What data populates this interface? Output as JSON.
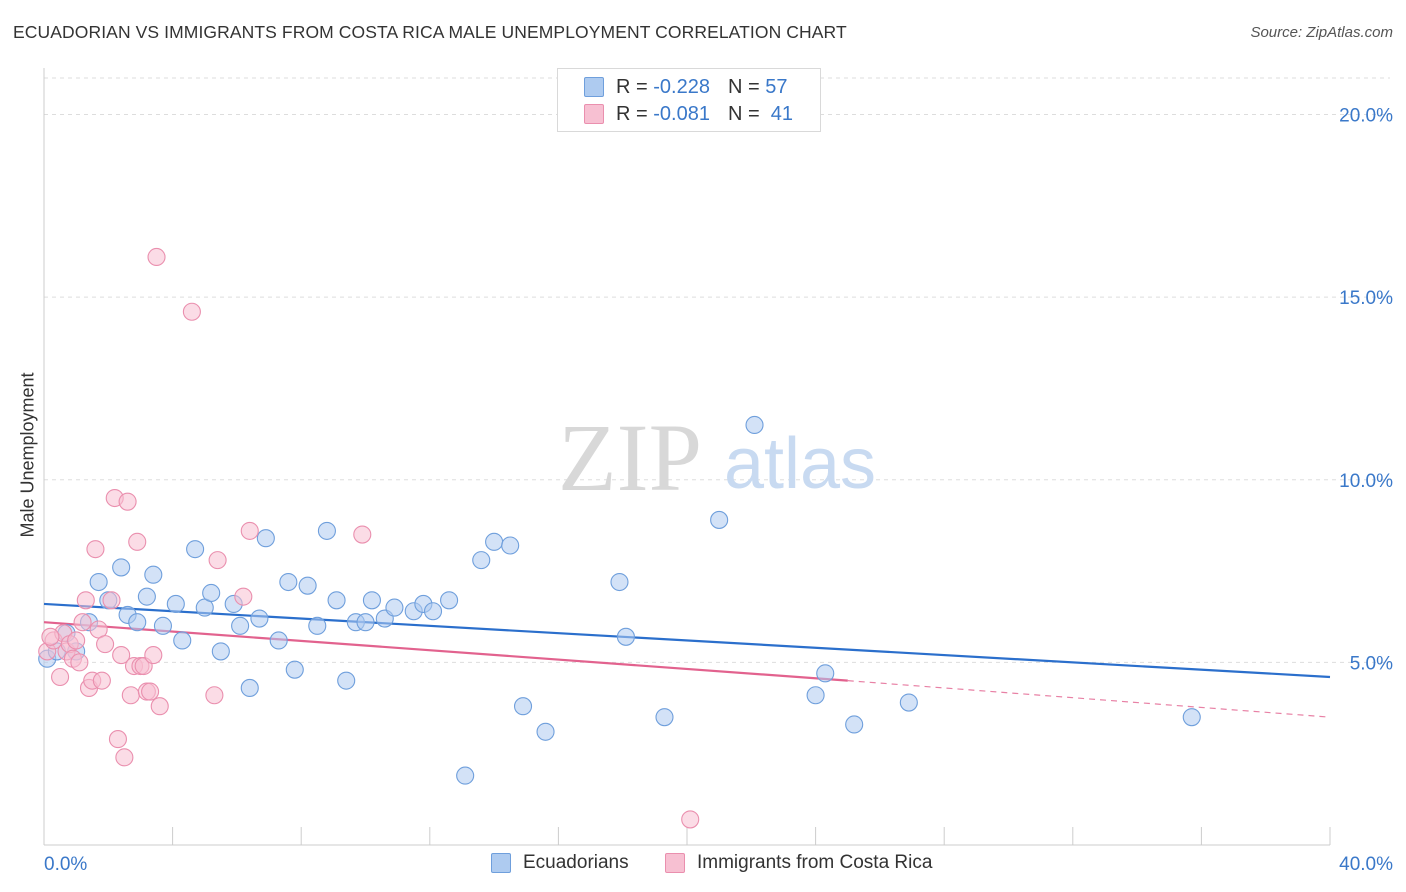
{
  "header": {
    "title": "ECUADORIAN VS IMMIGRANTS FROM COSTA RICA MALE UNEMPLOYMENT CORRELATION CHART",
    "source": "Source: ZipAtlas.com"
  },
  "watermark": {
    "zip": "ZIP",
    "atlas": "atlas"
  },
  "colors": {
    "blue_fill": "#aecbf0",
    "blue_stroke": "#6f9fdc",
    "blue_line": "#2b6fcc",
    "pink_fill": "#f7c0d2",
    "pink_stroke": "#ea8fae",
    "pink_line": "#e2628e",
    "axis_text": "#3a78c9",
    "grid": "#dddddd"
  },
  "legend_top": {
    "rows": [
      {
        "r_label": "R =",
        "r_value": "-0.228",
        "n_label": "N =",
        "n_value": "57"
      },
      {
        "r_label": "R =",
        "r_value": "-0.081",
        "n_label": "N =",
        "n_value": "41"
      }
    ]
  },
  "legend_bottom": [
    "Ecuadorians",
    "Immigrants from Costa Rica"
  ],
  "chart_data": {
    "type": "scatter",
    "title": "ECUADORIAN VS IMMIGRANTS FROM COSTA RICA MALE UNEMPLOYMENT CORRELATION CHART",
    "xlabel": "",
    "ylabel": "Male Unemployment",
    "xlim": [
      0,
      40
    ],
    "ylim": [
      0,
      21
    ],
    "x_tick_labels": [
      {
        "value": 0,
        "label": "0.0%"
      },
      {
        "value": 40,
        "label": "40.0%"
      }
    ],
    "y_tick_labels": [
      {
        "value": 5,
        "label": "5.0%"
      },
      {
        "value": 10,
        "label": "10.0%"
      },
      {
        "value": 15,
        "label": "15.0%"
      },
      {
        "value": 20,
        "label": "20.0%"
      }
    ],
    "grid": true,
    "legend_position": "top-center",
    "series": [
      {
        "name": "Ecuadorians",
        "color": "#aecbf0",
        "points": [
          [
            0.1,
            5.1
          ],
          [
            0.4,
            5.3
          ],
          [
            0.7,
            5.8
          ],
          [
            1.0,
            5.3
          ],
          [
            1.4,
            6.1
          ],
          [
            1.7,
            7.2
          ],
          [
            2.0,
            6.7
          ],
          [
            2.4,
            7.6
          ],
          [
            2.6,
            6.3
          ],
          [
            2.9,
            6.1
          ],
          [
            3.2,
            6.8
          ],
          [
            3.4,
            7.4
          ],
          [
            3.7,
            6.0
          ],
          [
            4.1,
            6.6
          ],
          [
            4.3,
            5.6
          ],
          [
            4.7,
            8.1
          ],
          [
            5.0,
            6.5
          ],
          [
            5.2,
            6.9
          ],
          [
            5.5,
            5.3
          ],
          [
            5.9,
            6.6
          ],
          [
            6.1,
            6.0
          ],
          [
            6.4,
            4.3
          ],
          [
            6.7,
            6.2
          ],
          [
            6.9,
            8.4
          ],
          [
            7.3,
            5.6
          ],
          [
            7.6,
            7.2
          ],
          [
            7.8,
            4.8
          ],
          [
            8.2,
            7.1
          ],
          [
            8.5,
            6.0
          ],
          [
            8.8,
            8.6
          ],
          [
            9.1,
            6.7
          ],
          [
            9.4,
            4.5
          ],
          [
            9.7,
            6.1
          ],
          [
            10.0,
            6.1
          ],
          [
            10.2,
            6.7
          ],
          [
            10.6,
            6.2
          ],
          [
            10.9,
            6.5
          ],
          [
            11.5,
            6.4
          ],
          [
            11.8,
            6.6
          ],
          [
            12.1,
            6.4
          ],
          [
            12.6,
            6.7
          ],
          [
            13.1,
            1.9
          ],
          [
            13.6,
            7.8
          ],
          [
            14.0,
            8.3
          ],
          [
            14.5,
            8.2
          ],
          [
            14.9,
            3.8
          ],
          [
            15.6,
            3.1
          ],
          [
            17.9,
            7.2
          ],
          [
            18.1,
            5.7
          ],
          [
            19.3,
            3.5
          ],
          [
            21.0,
            8.9
          ],
          [
            22.1,
            11.5
          ],
          [
            24.0,
            4.1
          ],
          [
            24.3,
            4.7
          ],
          [
            25.2,
            3.3
          ],
          [
            26.9,
            3.9
          ],
          [
            35.7,
            3.5
          ]
        ]
      },
      {
        "name": "Immigrants from Costa Rica",
        "color": "#f7c0d2",
        "points": [
          [
            0.1,
            5.3
          ],
          [
            0.3,
            5.6
          ],
          [
            0.5,
            4.6
          ],
          [
            0.6,
            5.8
          ],
          [
            0.7,
            5.3
          ],
          [
            0.8,
            5.5
          ],
          [
            0.9,
            5.1
          ],
          [
            1.0,
            5.6
          ],
          [
            1.1,
            5.0
          ],
          [
            1.3,
            6.7
          ],
          [
            1.4,
            4.3
          ],
          [
            1.5,
            4.5
          ],
          [
            1.6,
            8.1
          ],
          [
            1.7,
            5.9
          ],
          [
            1.8,
            4.5
          ],
          [
            1.9,
            5.5
          ],
          [
            2.1,
            6.7
          ],
          [
            2.2,
            9.5
          ],
          [
            2.3,
            2.9
          ],
          [
            2.4,
            5.2
          ],
          [
            2.5,
            2.4
          ],
          [
            2.6,
            9.4
          ],
          [
            2.7,
            4.1
          ],
          [
            2.8,
            4.9
          ],
          [
            2.9,
            8.3
          ],
          [
            3.0,
            4.9
          ],
          [
            3.1,
            4.9
          ],
          [
            3.2,
            4.2
          ],
          [
            3.3,
            4.2
          ],
          [
            3.4,
            5.2
          ],
          [
            3.5,
            16.1
          ],
          [
            3.6,
            3.8
          ],
          [
            4.6,
            14.6
          ],
          [
            5.3,
            4.1
          ],
          [
            5.4,
            7.8
          ],
          [
            6.2,
            6.8
          ],
          [
            6.4,
            8.6
          ],
          [
            9.9,
            8.5
          ],
          [
            20.1,
            0.7
          ],
          [
            0.2,
            5.7
          ],
          [
            1.2,
            6.1
          ]
        ]
      }
    ],
    "trend_lines": [
      {
        "series": "Ecuadorians",
        "x_start": 0,
        "y_start": 6.6,
        "x_end": 40,
        "y_end": 4.6
      },
      {
        "series": "Immigrants from Costa Rica",
        "x_start": 0,
        "y_start": 6.1,
        "x_end": 25,
        "y_end": 4.5,
        "dashed_to_x": 40,
        "dashed_to_y": 3.5
      }
    ]
  }
}
